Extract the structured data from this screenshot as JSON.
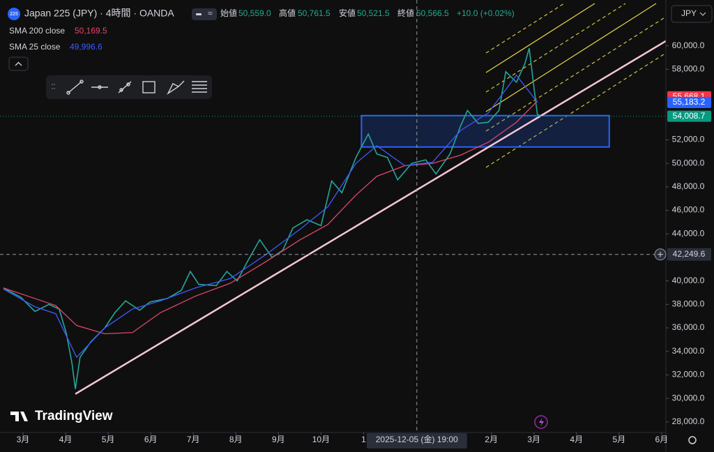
{
  "header": {
    "badge": "225",
    "title": "Japan 225 (JPY) · 4時間 · OANDA",
    "ohlc": [
      {
        "name": "始値",
        "value": "50,559.0"
      },
      {
        "name": "高値",
        "value": "50,761.5"
      },
      {
        "name": "安値",
        "value": "50,521.5"
      },
      {
        "name": "終値",
        "value": "50,566.5"
      }
    ],
    "change": "+10.0 (+0.02%)",
    "currency": "JPY",
    "logo": "TradingView"
  },
  "chart_data": {
    "type": "line",
    "xlim": [
      -0.54,
      15.1
    ],
    "ylim": [
      27100,
      63900
    ],
    "xticks": [
      {
        "value": 0,
        "label": "3月"
      },
      {
        "value": 1,
        "label": "4月"
      },
      {
        "value": 2,
        "label": "5月"
      },
      {
        "value": 3,
        "label": "6月"
      },
      {
        "value": 4,
        "label": "7月"
      },
      {
        "value": 5,
        "label": "8月"
      },
      {
        "value": 6,
        "label": "9月"
      },
      {
        "value": 7,
        "label": "10月"
      },
      {
        "value": 8,
        "label": "1"
      },
      {
        "value": 11,
        "label": "2月"
      },
      {
        "value": 12,
        "label": "3月"
      },
      {
        "value": 13,
        "label": "4月"
      },
      {
        "value": 14,
        "label": "5月"
      },
      {
        "value": 15,
        "label": "6月"
      }
    ],
    "yticks": [
      {
        "value": 28000,
        "label": "28,000.0"
      },
      {
        "value": 30000,
        "label": "30,000.0"
      },
      {
        "value": 32000,
        "label": "32,000.0"
      },
      {
        "value": 34000,
        "label": "34,000.0"
      },
      {
        "value": 36000,
        "label": "36,000.0"
      },
      {
        "value": 38000,
        "label": "38,000.0"
      },
      {
        "value": 40000,
        "label": "40,000.0"
      },
      {
        "value": 44000,
        "label": "44,000.0"
      },
      {
        "value": 46000,
        "label": "46,000.0"
      },
      {
        "value": 48000,
        "label": "48,000.0"
      },
      {
        "value": 50000,
        "label": "50,000.0"
      },
      {
        "value": 52000,
        "label": "52,000.0"
      },
      {
        "value": 58000,
        "label": "58,000.0"
      },
      {
        "value": 60000,
        "label": "60,000.0"
      }
    ],
    "series": [
      {
        "color": "#26a69a",
        "x": [
          -0.46,
          -0.05,
          0.28,
          0.61,
          0.85,
          1.02,
          1.15,
          1.23,
          1.34,
          1.59,
          1.92,
          2.16,
          2.41,
          2.74,
          2.98,
          3.39,
          3.72,
          3.93,
          4.13,
          4.54,
          4.79,
          5.03,
          5.28,
          5.56,
          5.85,
          6.1,
          6.34,
          6.67,
          7.0,
          7.25,
          7.49,
          7.82,
          8.11,
          8.31,
          8.56,
          8.8,
          9.13,
          9.46,
          9.7,
          10.03,
          10.28,
          10.44,
          10.69,
          10.93,
          11.18,
          11.34,
          11.59,
          11.79,
          11.89,
          12.0,
          12.08,
          12.16
        ],
        "values": [
          39400,
          38600,
          37400,
          38000,
          37600,
          35500,
          33000,
          30800,
          33500,
          34800,
          36000,
          37300,
          38300,
          37500,
          38200,
          38500,
          39200,
          40800,
          39700,
          39600,
          40800,
          40000,
          41700,
          43500,
          42000,
          42600,
          44500,
          45200,
          44700,
          48500,
          47500,
          50500,
          52500,
          50800,
          50500,
          48600,
          50000,
          50300,
          49100,
          50800,
          53200,
          54500,
          53400,
          53500,
          54500,
          57800,
          56900,
          58500,
          59800,
          56500,
          54200,
          54000
        ]
      },
      {
        "name": "SMA 200 close",
        "last": "50,169.5",
        "color": "#e0476b",
        "x": [
          -0.46,
          0.28,
          0.77,
          1.26,
          1.92,
          2.57,
          3.23,
          4.05,
          4.87,
          5.69,
          6.51,
          7.16,
          7.82,
          8.31,
          8.97,
          9.62,
          10.28,
          10.93,
          11.59,
          12.08
        ],
        "values": [
          39400,
          38500,
          37900,
          36200,
          35500,
          35600,
          37300,
          38700,
          39800,
          41600,
          43500,
          44800,
          47300,
          48900,
          49800,
          50000,
          50700,
          51800,
          53500,
          55300
        ]
      },
      {
        "name": "SMA 25 close",
        "last": "49,996.6",
        "color": "#3d5afe",
        "x": [
          -0.46,
          0.28,
          0.77,
          1.26,
          1.92,
          2.57,
          3.23,
          4.05,
          4.87,
          5.69,
          6.51,
          7.16,
          7.82,
          8.31,
          8.97,
          9.62,
          10.28,
          10.93,
          11.59,
          12.08
        ],
        "values": [
          39300,
          37800,
          37200,
          33500,
          36000,
          37600,
          38300,
          39400,
          40200,
          42200,
          44400,
          46300,
          50000,
          51500,
          49800,
          50100,
          52800,
          54300,
          57500,
          55200
        ]
      }
    ],
    "trendline": {
      "color": "#f5c6d6",
      "x": [
        1.23,
        15.11
      ],
      "values": [
        30377,
        60430
      ]
    },
    "zone": {
      "color": "#2962ff",
      "x": [
        7.95,
        13.77
      ],
      "values": [
        51393,
        54064
      ]
    },
    "crosshair": {
      "x": {
        "value": 9.25,
        "label": "2025-12-05 (金) 19:00"
      },
      "y": {
        "value": 42249.6,
        "label": "42,249.6"
      }
    },
    "price_labels": [
      {
        "value": 55668.1,
        "label": "55,668.1",
        "color": "#f23645"
      },
      {
        "value": 55183.2,
        "label": "55,183.2",
        "color": "#2962ff"
      },
      {
        "value": 54008.7,
        "label": "54,008.7",
        "color": "#089981",
        "dotted": true
      }
    ]
  }
}
